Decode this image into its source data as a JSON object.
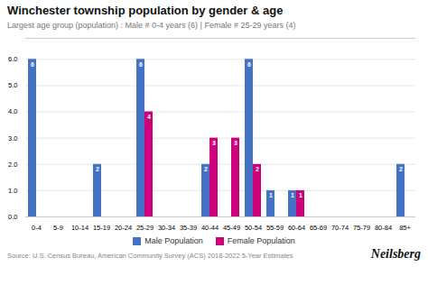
{
  "chart_data": {
    "type": "bar",
    "title": "Winchester township population by gender & age",
    "subtitle": "Largest age group (population) : Male # 0-4 years (6) | Female # 25-29 years (4)",
    "categories": [
      "0-4",
      "5-9",
      "10-14",
      "15-19",
      "20-24",
      "25-29",
      "30-34",
      "35-39",
      "40-44",
      "45-49",
      "50-54",
      "55-59",
      "60-64",
      "65-69",
      "70-74",
      "75-79",
      "80-84",
      "85+"
    ],
    "series": [
      {
        "name": "Male Population",
        "color": "#4472C4",
        "values": [
          6,
          0,
          0,
          2,
          0,
          6,
          0,
          0,
          2,
          0,
          6,
          1,
          1,
          0,
          0,
          0,
          0,
          2
        ]
      },
      {
        "name": "Female Population",
        "color": "#CC007A",
        "values": [
          0,
          0,
          0,
          0,
          0,
          4,
          0,
          0,
          3,
          3,
          2,
          0,
          1,
          0,
          0,
          0,
          0,
          0
        ]
      }
    ],
    "ylim": [
      0,
      6.8
    ],
    "yticks": [
      0,
      1,
      2,
      3,
      4,
      5,
      6
    ],
    "grid": true,
    "legend": "bottom",
    "data_labels": true,
    "source": "Source: U.S. Census Bureau, American Community Survey (ACS) 2018-2022 5-Year Estimates",
    "branding": "Neilsberg"
  }
}
